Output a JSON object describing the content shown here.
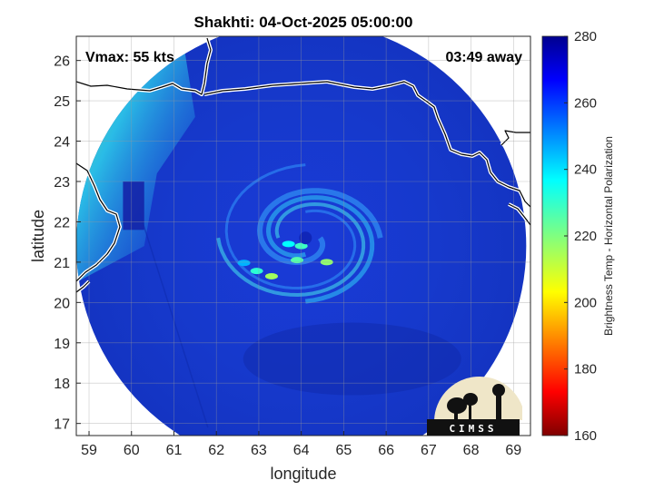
{
  "chart_data": {
    "type": "heatmap",
    "title": "Shakhti: 04-Oct-2025 05:00:00",
    "annotations": {
      "vmax": "Vmax: 55 kts",
      "time_away": "03:49 away"
    },
    "xlabel": "longitude",
    "ylabel": "latitude",
    "xlim": [
      58.7,
      69.4
    ],
    "ylim": [
      16.7,
      26.6
    ],
    "xticks": [
      59,
      60,
      61,
      62,
      63,
      64,
      65,
      66,
      67,
      68,
      69
    ],
    "yticks": [
      17,
      18,
      19,
      20,
      21,
      22,
      23,
      24,
      25,
      26
    ],
    "grid": true,
    "colorbar": {
      "label": "Brightness Temp - Horizontal Polarization",
      "range": [
        160,
        280
      ],
      "ticks": [
        160,
        180,
        200,
        220,
        240,
        260,
        280
      ],
      "colormap": "jet"
    },
    "swath": {
      "center_lon": 64.0,
      "center_lat": 21.4,
      "radius_deg": 5.3
    },
    "storm_center": {
      "lon": 64.1,
      "lat": 21.6
    },
    "cold_spots": [
      {
        "lon": 62.65,
        "lat": 20.98,
        "value": 196
      },
      {
        "lon": 62.95,
        "lat": 20.78,
        "value": 210
      },
      {
        "lon": 63.7,
        "lat": 21.45,
        "value": 205
      },
      {
        "lon": 64.0,
        "lat": 21.4,
        "value": 212
      },
      {
        "lon": 63.9,
        "lat": 21.05,
        "value": 215
      },
      {
        "lon": 64.6,
        "lat": 21.0,
        "value": 222
      },
      {
        "lon": 63.3,
        "lat": 20.65,
        "value": 224
      }
    ],
    "logo": {
      "text": "CIMSS"
    }
  }
}
